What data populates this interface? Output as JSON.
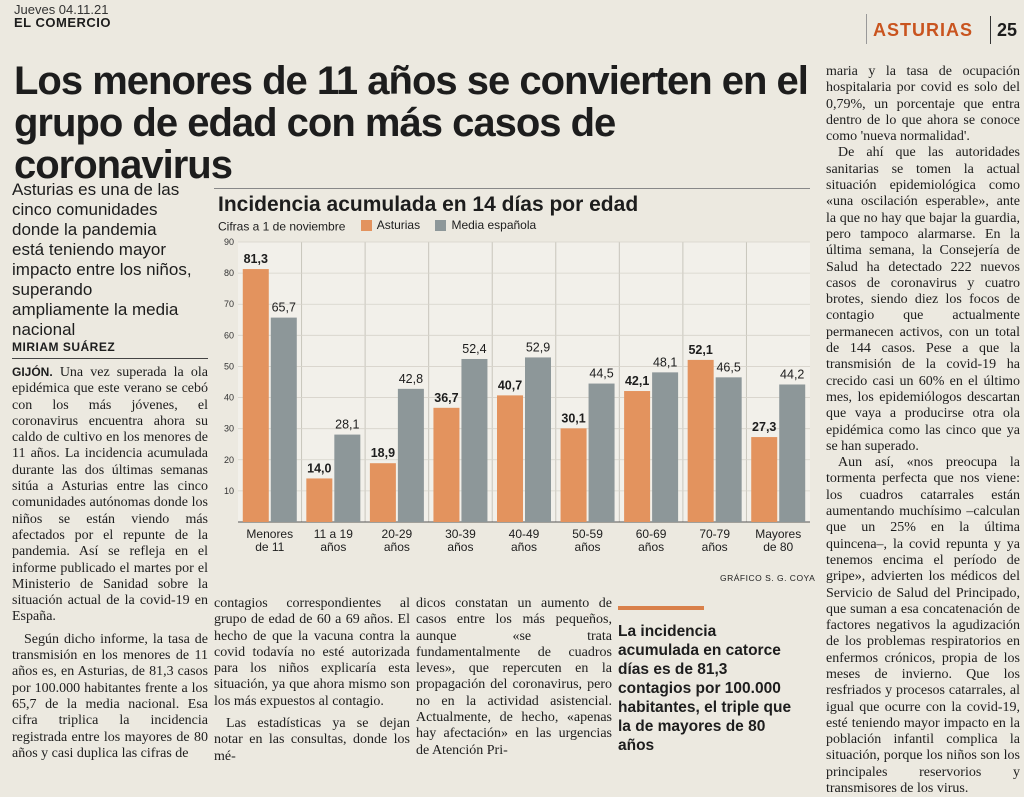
{
  "masthead": {
    "date": "Jueves 04.11.21",
    "paper": "EL COMERCIO",
    "section": "ASTURIAS",
    "page": "25"
  },
  "headline": "Los menores de 11 años se convierten en el grupo de edad con más casos de coronavirus",
  "standfirst": "Asturias es una de las cinco comunidades donde la pandemia está teniendo mayor impacto entre los niños, superando ampliamente la media nacional",
  "byline": "MIRIAM SUÁREZ",
  "body": {
    "col1_city": "GIJÓN.",
    "col1_p1": "Una vez superada la ola epidémica que este verano se cebó con los más jóvenes, el coronavirus encuentra ahora su caldo de cultivo en los menores de 11 años. La incidencia acumulada durante las dos últimas semanas sitúa a Asturias entre las cinco comunidades autónomas donde los niños se están viendo más afectados por el repunte de la pandemia. Así se refleja en el informe publicado el martes por el Ministerio de Sanidad sobre la situación actual de la covid-19 en España.",
    "col1_p2": "Según dicho informe, la tasa de transmisión en los menores de 11 años es, en Asturias, de 81,3 casos por 100.000 habitantes frente a los 65,7 de la media nacional. Esa cifra triplica la incidencia registrada entre los mayores de 80 años y casi duplica las cifras de",
    "col2_p1": "contagios correspondientes al grupo de edad de 60 a 69 años. El hecho de que la vacuna contra la covid todavía no esté autorizada para los niños explicaría esta situación, ya que ahora mismo son los más expuestos al contagio.",
    "col2_p2": "Las estadísticas ya se dejan notar en las consultas, donde los mé-",
    "col3_p1": "dicos constatan un aumento de casos entre los más pequeños, aunque «se trata fundamentalmente de cuadros leves», que repercuten en la propagación del coronavirus, pero no en la actividad asistencial. Actualmente, de hecho, «apenas hay afectación» en las urgencias de Atención Pri-",
    "col5_p1": "maria y la tasa de ocupación hospitalaria por covid es solo del 0,79%, un porcentaje que entra dentro de lo que ahora se conoce como 'nueva normalidad'.",
    "col5_p2": "De ahí que las autoridades sanitarias se tomen la actual situación epidemiológica como «una oscilación esperable», ante la que no hay que bajar la guardia, pero tampoco alarmarse. En la última semana, la Consejería de Salud ha detectado 222 nuevos casos de coronavirus y cuatro brotes, siendo diez los focos de contagio que actualmente permanecen activos, con un total de 144 casos. Pese a que la transmisión de la covid-19 ha crecido casi un 60% en el último mes, los epidemiólogos descartan que vaya a producirse otra ola epidémica como las cinco que ya se han superado.",
    "col5_p3": "Aun así, «nos preocupa la tormenta perfecta que nos viene: los cuadros catarrales están aumentando muchísimo –calculan que un 25% en la última quincena–, la covid repunta y ya tenemos encima el período de gripe», advierten los médicos del Servicio de Salud del Principado, que suman a esa concatenación de factores negativos la agudización de los problemas respiratorios en enfermos crónicos, propia de los meses de invierno. Que los resfriados y procesos catarrales, al igual que ocurre con la covid-19, esté teniendo mayor impacto en la población infantil complica la situación, porque los niños son los principales reservorios y transmisores de los virus."
  },
  "pullquote": "La incidencia acumulada en catorce días es de 81,3 contagios por 100.000 habitantes, el triple que la de mayores de 80 años",
  "chart": {
    "credit": "GRÁFICO S. G. COYA"
  },
  "chart_data": {
    "type": "bar",
    "title": "Incidencia acumulada en 14 días por edad",
    "subtitle": "Cifras a 1 de noviembre",
    "categories": [
      [
        "Menores",
        "de 11"
      ],
      [
        "11 a 19",
        "años"
      ],
      [
        "20-29",
        "años"
      ],
      [
        "30-39",
        "años"
      ],
      [
        "40-49",
        "años"
      ],
      [
        "50-59",
        "años"
      ],
      [
        "60-69",
        "años"
      ],
      [
        "70-79",
        "años"
      ],
      [
        "Mayores",
        "de 80"
      ]
    ],
    "series": [
      {
        "name": "Asturias",
        "color": "#e3935e",
        "values": [
          81.3,
          14.0,
          18.9,
          36.7,
          40.7,
          30.1,
          42.1,
          52.1,
          27.3
        ],
        "labels": [
          "81,3",
          "14,0",
          "18,9",
          "36,7",
          "40,7",
          "30,1",
          "42,1",
          "52,1",
          "27,3"
        ]
      },
      {
        "name": "Media española",
        "color": "#8d9799",
        "values": [
          65.7,
          28.1,
          42.8,
          52.4,
          52.9,
          44.5,
          48.1,
          46.5,
          44.2
        ],
        "labels": [
          "65,7",
          "28,1",
          "42,8",
          "52,4",
          "52,9",
          "44,5",
          "48,1",
          "46,5",
          "44,2"
        ]
      }
    ],
    "yticks": [
      10,
      20,
      30,
      40,
      50,
      60,
      70,
      80,
      90
    ],
    "ylim": [
      0,
      90
    ],
    "grid": true,
    "legend": "top"
  }
}
